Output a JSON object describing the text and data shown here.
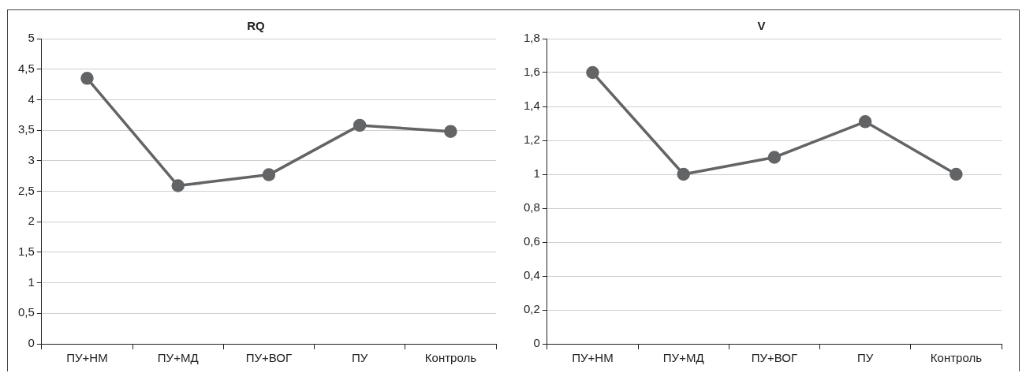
{
  "chart_data": [
    {
      "type": "line",
      "title": "RQ",
      "categories": [
        "ПУ+НМ",
        "ПУ+МД",
        "ПУ+ВОГ",
        "ПУ",
        "Контроль"
      ],
      "series": [
        {
          "color": "#636466",
          "values": [
            4.35,
            2.59,
            2.77,
            3.58,
            3.48
          ]
        }
      ],
      "ylim": [
        0,
        5
      ],
      "yticks": [
        0,
        {
          "value": 0.5,
          "label": "0,5"
        },
        1,
        {
          "value": 1.5,
          "label": "1,5"
        },
        2,
        {
          "value": 2.5,
          "label": "2,5"
        },
        3,
        {
          "value": 3.5,
          "label": "3,5"
        },
        4,
        {
          "value": 4.5,
          "label": "4,5"
        },
        5
      ],
      "grid": "y",
      "legend": false,
      "marker": "circle",
      "line_style": "solid"
    },
    {
      "type": "line",
      "title": "V",
      "categories": [
        "ПУ+НМ",
        "ПУ+МД",
        "ПУ+ВОГ",
        "ПУ",
        "Контроль"
      ],
      "series": [
        {
          "color": "#636466",
          "values": [
            1.6,
            1.0,
            1.1,
            1.31,
            1.0
          ]
        }
      ],
      "ylim": [
        0,
        1.8
      ],
      "yticks": [
        0,
        {
          "value": 0.2,
          "label": "0,2"
        },
        {
          "value": 0.4,
          "label": "0,4"
        },
        {
          "value": 0.6,
          "label": "0,6"
        },
        {
          "value": 0.8,
          "label": "0,8"
        },
        1,
        {
          "value": 1.2,
          "label": "1,2"
        },
        {
          "value": 1.4,
          "label": "1,4"
        },
        {
          "value": 1.6,
          "label": "1,6"
        },
        {
          "value": 1.8,
          "label": "1,8"
        }
      ],
      "grid": "y",
      "legend": false,
      "marker": "circle",
      "line_style": "solid"
    }
  ]
}
